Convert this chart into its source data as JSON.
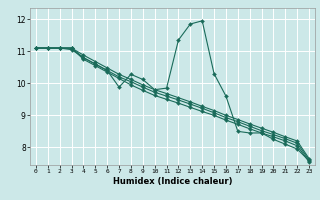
{
  "xlabel": "Humidex (Indice chaleur)",
  "bg_color": "#cce8e8",
  "grid_color": "#ffffff",
  "line_color": "#1a6b5a",
  "x_ticks": [
    0,
    1,
    2,
    3,
    4,
    5,
    6,
    7,
    8,
    9,
    10,
    11,
    12,
    13,
    14,
    15,
    16,
    17,
    18,
    19,
    20,
    21,
    22,
    23
  ],
  "y_ticks": [
    8,
    9,
    10,
    11,
    12
  ],
  "xlim": [
    -0.5,
    23.5
  ],
  "ylim": [
    7.45,
    12.35
  ],
  "s1_y": [
    11.1,
    11.1,
    11.1,
    11.1,
    10.75,
    10.55,
    10.35,
    10.15,
    9.95,
    9.78,
    9.62,
    9.5,
    9.38,
    9.25,
    9.12,
    9.0,
    8.85,
    8.72,
    8.58,
    8.45,
    8.33,
    8.2,
    8.05,
    7.55
  ],
  "s2_y": [
    11.1,
    11.1,
    11.1,
    11.1,
    10.8,
    10.6,
    10.4,
    10.2,
    10.05,
    9.88,
    9.72,
    9.6,
    9.48,
    9.35,
    9.22,
    9.08,
    8.93,
    8.8,
    8.66,
    8.52,
    8.4,
    8.27,
    8.13,
    7.6
  ],
  "s3_y": [
    11.1,
    11.1,
    11.1,
    11.1,
    10.88,
    10.68,
    10.48,
    10.28,
    10.12,
    9.95,
    9.8,
    9.68,
    9.55,
    9.42,
    9.28,
    9.15,
    9.0,
    8.87,
    8.73,
    8.6,
    8.47,
    8.33,
    8.2,
    7.65
  ],
  "s4_y": [
    11.1,
    11.1,
    11.1,
    11.05,
    10.8,
    10.6,
    10.4,
    9.88,
    10.28,
    10.12,
    9.8,
    9.85,
    11.35,
    11.85,
    11.95,
    10.3,
    9.6,
    8.5,
    8.45,
    8.45,
    8.25,
    8.1,
    7.95,
    7.58
  ]
}
